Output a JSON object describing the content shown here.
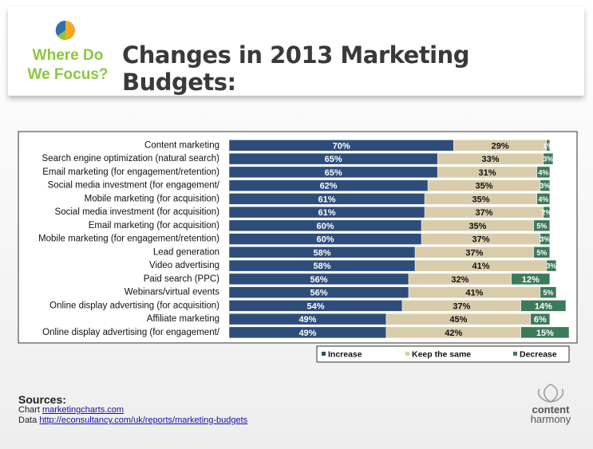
{
  "header": {
    "badge": "Where Do We Focus?",
    "title": "Changes in 2013 Marketing Budgets:"
  },
  "chart_data": {
    "type": "stacked-barh",
    "categories": [
      "Content marketing",
      "Search engine optimization (natural search)",
      "Email marketing (for engagement/retention)",
      "Social media investment (for engagement/",
      "Mobile marketing (for acquisition)",
      "Social media investment (for acquisition)",
      "Email marketing (for acquisition)",
      "Mobile marketing (for engagement/retention)",
      "Lead generation",
      "Video advertising",
      "Paid search (PPC)",
      "Webinars/virtual events",
      "Online display advertising (for acquisition)",
      "Affiliate marketing",
      "Online display advertising (for engagement/"
    ],
    "series": [
      {
        "name": "Increase",
        "color": "#2e4d7b",
        "values": [
          70,
          65,
          65,
          62,
          61,
          61,
          60,
          60,
          58,
          58,
          56,
          56,
          54,
          49,
          49
        ],
        "value_labels": [
          "70%",
          "65%",
          "65%",
          "62%",
          "61%",
          "61%",
          "60%",
          "60%",
          "58%",
          "58%",
          "56%",
          "56%",
          "54%",
          "49%",
          "49%"
        ]
      },
      {
        "name": "Keep the same",
        "color": "#d8ccab",
        "values": [
          29,
          33,
          31,
          35,
          35,
          37,
          35,
          37,
          37,
          41,
          32,
          41,
          37,
          45,
          42
        ],
        "value_labels": [
          "29%",
          "33%",
          "31%",
          "35%",
          "35%",
          "37%",
          "35%",
          "37%",
          "37%",
          "41%",
          "32%",
          "41%",
          "37%",
          "45%",
          "42%"
        ]
      },
      {
        "name": "Decrease",
        "color": "#3b7a5a",
        "values": [
          1,
          3,
          4,
          3,
          4,
          2,
          5,
          3,
          5,
          3,
          12,
          5,
          14,
          6,
          15
        ],
        "value_labels": [
          "1%",
          "3%",
          "4%",
          "3%",
          "4%",
          "2%",
          "5%",
          "3%",
          "5%",
          "3%",
          "12%",
          "5%",
          "14%",
          "6%",
          "15%"
        ]
      }
    ],
    "legend": "bottom-right"
  },
  "sources": {
    "heading": "Sources:",
    "lines": [
      {
        "prefix": "Chart",
        "link": "marketingcharts.com"
      },
      {
        "prefix": "Data",
        "link": "http://econsultancy.com/uk/reports/marketing-budgets"
      }
    ]
  },
  "logo": {
    "line1": "content",
    "line2": "harmony"
  }
}
